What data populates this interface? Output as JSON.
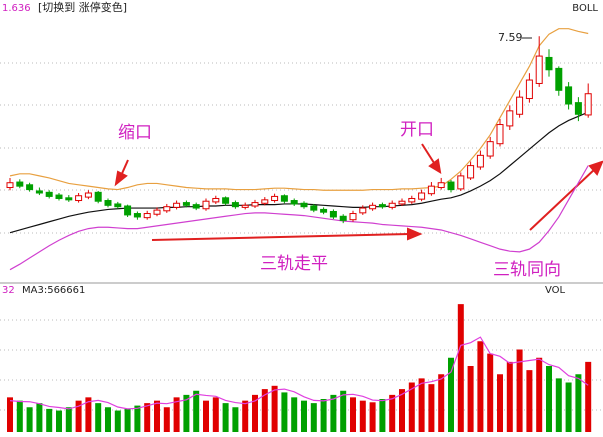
{
  "chart_data": {
    "type": "candlestick",
    "header": {
      "code": "1.636",
      "switch": "[切换到 涨停变色]",
      "indicator": "BOLL"
    },
    "peak_label": "7.59",
    "annotations": {
      "narrow": "缩口",
      "open": "开口",
      "flat": "三轨走平",
      "same_dir": "三轨同向"
    },
    "ylim": [
      4.0,
      7.9
    ],
    "up_color": "#e00000",
    "down_color": "#00a000",
    "open": [
      5.38,
      5.46,
      5.42,
      5.33,
      5.31,
      5.27,
      5.23,
      5.19,
      5.24,
      5.31,
      5.19,
      5.14,
      5.11,
      5.0,
      4.94,
      4.99,
      5.04,
      5.09,
      5.16,
      5.13,
      5.07,
      5.17,
      5.23,
      5.16,
      5.09,
      5.11,
      5.15,
      5.19,
      5.26,
      5.19,
      5.15,
      5.11,
      5.06,
      5.03,
      4.96,
      4.91,
      5.01,
      5.07,
      5.13,
      5.09,
      5.14,
      5.17,
      5.21,
      5.29,
      5.38,
      5.46,
      5.36,
      5.52,
      5.68,
      5.84,
      6.02,
      6.28,
      6.45,
      6.68,
      6.9,
      7.28,
      7.12,
      6.85,
      6.62,
      6.44
    ],
    "high": [
      5.52,
      5.5,
      5.45,
      5.38,
      5.34,
      5.3,
      5.27,
      5.3,
      5.34,
      5.33,
      5.22,
      5.17,
      5.13,
      5.03,
      5.04,
      5.09,
      5.14,
      5.19,
      5.19,
      5.16,
      5.22,
      5.26,
      5.25,
      5.19,
      5.16,
      5.2,
      5.24,
      5.29,
      5.28,
      5.22,
      5.18,
      5.14,
      5.09,
      5.06,
      4.99,
      5.04,
      5.12,
      5.16,
      5.16,
      5.19,
      5.22,
      5.26,
      5.35,
      5.46,
      5.52,
      5.49,
      5.6,
      5.76,
      5.92,
      6.12,
      6.38,
      6.58,
      6.8,
      7.05,
      7.59,
      7.4,
      7.15,
      6.92,
      6.7,
      6.9
    ],
    "low": [
      5.34,
      5.37,
      5.32,
      5.27,
      5.22,
      5.19,
      5.17,
      5.16,
      5.21,
      5.15,
      5.09,
      5.07,
      4.95,
      4.91,
      4.91,
      4.96,
      5.01,
      5.06,
      5.09,
      5.05,
      5.04,
      5.14,
      5.12,
      5.07,
      5.06,
      5.08,
      5.12,
      5.16,
      5.15,
      5.11,
      5.07,
      5.02,
      4.99,
      4.92,
      4.86,
      4.88,
      4.98,
      5.04,
      5.07,
      5.06,
      5.11,
      5.14,
      5.18,
      5.26,
      5.35,
      5.31,
      5.33,
      5.49,
      5.64,
      5.8,
      5.98,
      6.22,
      6.4,
      6.62,
      6.85,
      7.0,
      6.72,
      6.52,
      6.35,
      6.4
    ],
    "close": [
      5.45,
      5.4,
      5.35,
      5.3,
      5.25,
      5.22,
      5.2,
      5.26,
      5.3,
      5.18,
      5.12,
      5.1,
      4.98,
      4.95,
      5.0,
      5.05,
      5.1,
      5.15,
      5.12,
      5.08,
      5.18,
      5.22,
      5.15,
      5.1,
      5.12,
      5.16,
      5.2,
      5.25,
      5.18,
      5.14,
      5.1,
      5.05,
      5.02,
      4.95,
      4.9,
      5.0,
      5.08,
      5.12,
      5.1,
      5.15,
      5.18,
      5.22,
      5.3,
      5.4,
      5.45,
      5.35,
      5.55,
      5.7,
      5.85,
      6.05,
      6.3,
      6.5,
      6.7,
      6.95,
      7.3,
      7.1,
      6.8,
      6.6,
      6.45,
      6.75
    ],
    "bands": [
      {
        "color": "#e8a040",
        "values": [
          5.55,
          5.58,
          5.58,
          5.55,
          5.52,
          5.48,
          5.44,
          5.42,
          5.4,
          5.38,
          5.36,
          5.35,
          5.38,
          5.42,
          5.44,
          5.44,
          5.42,
          5.4,
          5.38,
          5.37,
          5.36,
          5.36,
          5.36,
          5.35,
          5.35,
          5.35,
          5.36,
          5.37,
          5.37,
          5.36,
          5.35,
          5.35,
          5.34,
          5.34,
          5.34,
          5.34,
          5.34,
          5.35,
          5.35,
          5.35,
          5.36,
          5.36,
          5.37,
          5.38,
          5.4,
          5.5,
          5.62,
          5.78,
          5.95,
          6.15,
          6.4,
          6.65,
          6.9,
          7.15,
          7.45,
          7.62,
          7.7,
          7.7,
          7.66,
          7.63
        ]
      },
      {
        "color": "#111111",
        "values": [
          4.72,
          4.76,
          4.8,
          4.84,
          4.88,
          4.92,
          4.96,
          4.99,
          5.02,
          5.04,
          5.06,
          5.07,
          5.08,
          5.08,
          5.08,
          5.08,
          5.09,
          5.09,
          5.1,
          5.1,
          5.11,
          5.11,
          5.12,
          5.12,
          5.12,
          5.13,
          5.13,
          5.13,
          5.14,
          5.14,
          5.14,
          5.13,
          5.12,
          5.11,
          5.1,
          5.09,
          5.09,
          5.1,
          5.1,
          5.11,
          5.12,
          5.13,
          5.15,
          5.18,
          5.21,
          5.23,
          5.27,
          5.33,
          5.4,
          5.48,
          5.58,
          5.7,
          5.82,
          5.94,
          6.06,
          6.18,
          6.28,
          6.36,
          6.42,
          6.48
        ]
      },
      {
        "color": "#d040d0",
        "values": [
          4.18,
          4.26,
          4.35,
          4.44,
          4.53,
          4.61,
          4.68,
          4.74,
          4.78,
          4.8,
          4.8,
          4.79,
          4.78,
          4.78,
          4.8,
          4.82,
          4.84,
          4.86,
          4.88,
          4.9,
          4.92,
          4.94,
          4.96,
          4.98,
          5.0,
          5.01,
          5.01,
          5.0,
          4.99,
          4.98,
          4.97,
          4.95,
          4.93,
          4.91,
          4.89,
          4.88,
          4.87,
          4.86,
          4.84,
          4.83,
          4.82,
          4.81,
          4.8,
          4.78,
          4.76,
          4.72,
          4.68,
          4.63,
          4.58,
          4.53,
          4.48,
          4.45,
          4.44,
          4.48,
          4.58,
          4.75,
          4.95,
          5.2,
          5.45,
          5.7
        ]
      }
    ],
    "volume": {
      "header": {
        "count": "32",
        "ma": "MA3:566661",
        "name": "VOL"
      },
      "ylim": [
        0,
        1600000
      ],
      "values": [
        420000,
        380000,
        300000,
        350000,
        280000,
        260000,
        300000,
        380000,
        420000,
        350000,
        300000,
        260000,
        280000,
        320000,
        350000,
        380000,
        300000,
        420000,
        450000,
        500000,
        380000,
        420000,
        350000,
        300000,
        380000,
        450000,
        520000,
        560000,
        480000,
        420000,
        380000,
        350000,
        400000,
        450000,
        500000,
        420000,
        380000,
        360000,
        400000,
        450000,
        520000,
        600000,
        650000,
        580000,
        700000,
        900000,
        1550000,
        800000,
        1100000,
        950000,
        700000,
        850000,
        1000000,
        750000,
        900000,
        800000,
        650000,
        600000,
        700000,
        850000
      ],
      "ma_color": "#e040e0",
      "ma": [
        380000,
        370000,
        367000,
        343000,
        310000,
        297000,
        280000,
        313000,
        367000,
        383000,
        357000,
        303000,
        280000,
        287000,
        317000,
        350000,
        343000,
        367000,
        390000,
        457000,
        443000,
        433000,
        383000,
        357000,
        343000,
        377000,
        450000,
        510000,
        520000,
        487000,
        427000,
        383000,
        377000,
        400000,
        450000,
        457000,
        433000,
        387000,
        380000,
        403000,
        457000,
        523000,
        590000,
        610000,
        643000,
        727000,
        1050000,
        1083000,
        1150000,
        950000,
        917000,
        833000,
        850000,
        867000,
        883000,
        817000,
        783000,
        683000,
        650000,
        566661
      ]
    }
  }
}
